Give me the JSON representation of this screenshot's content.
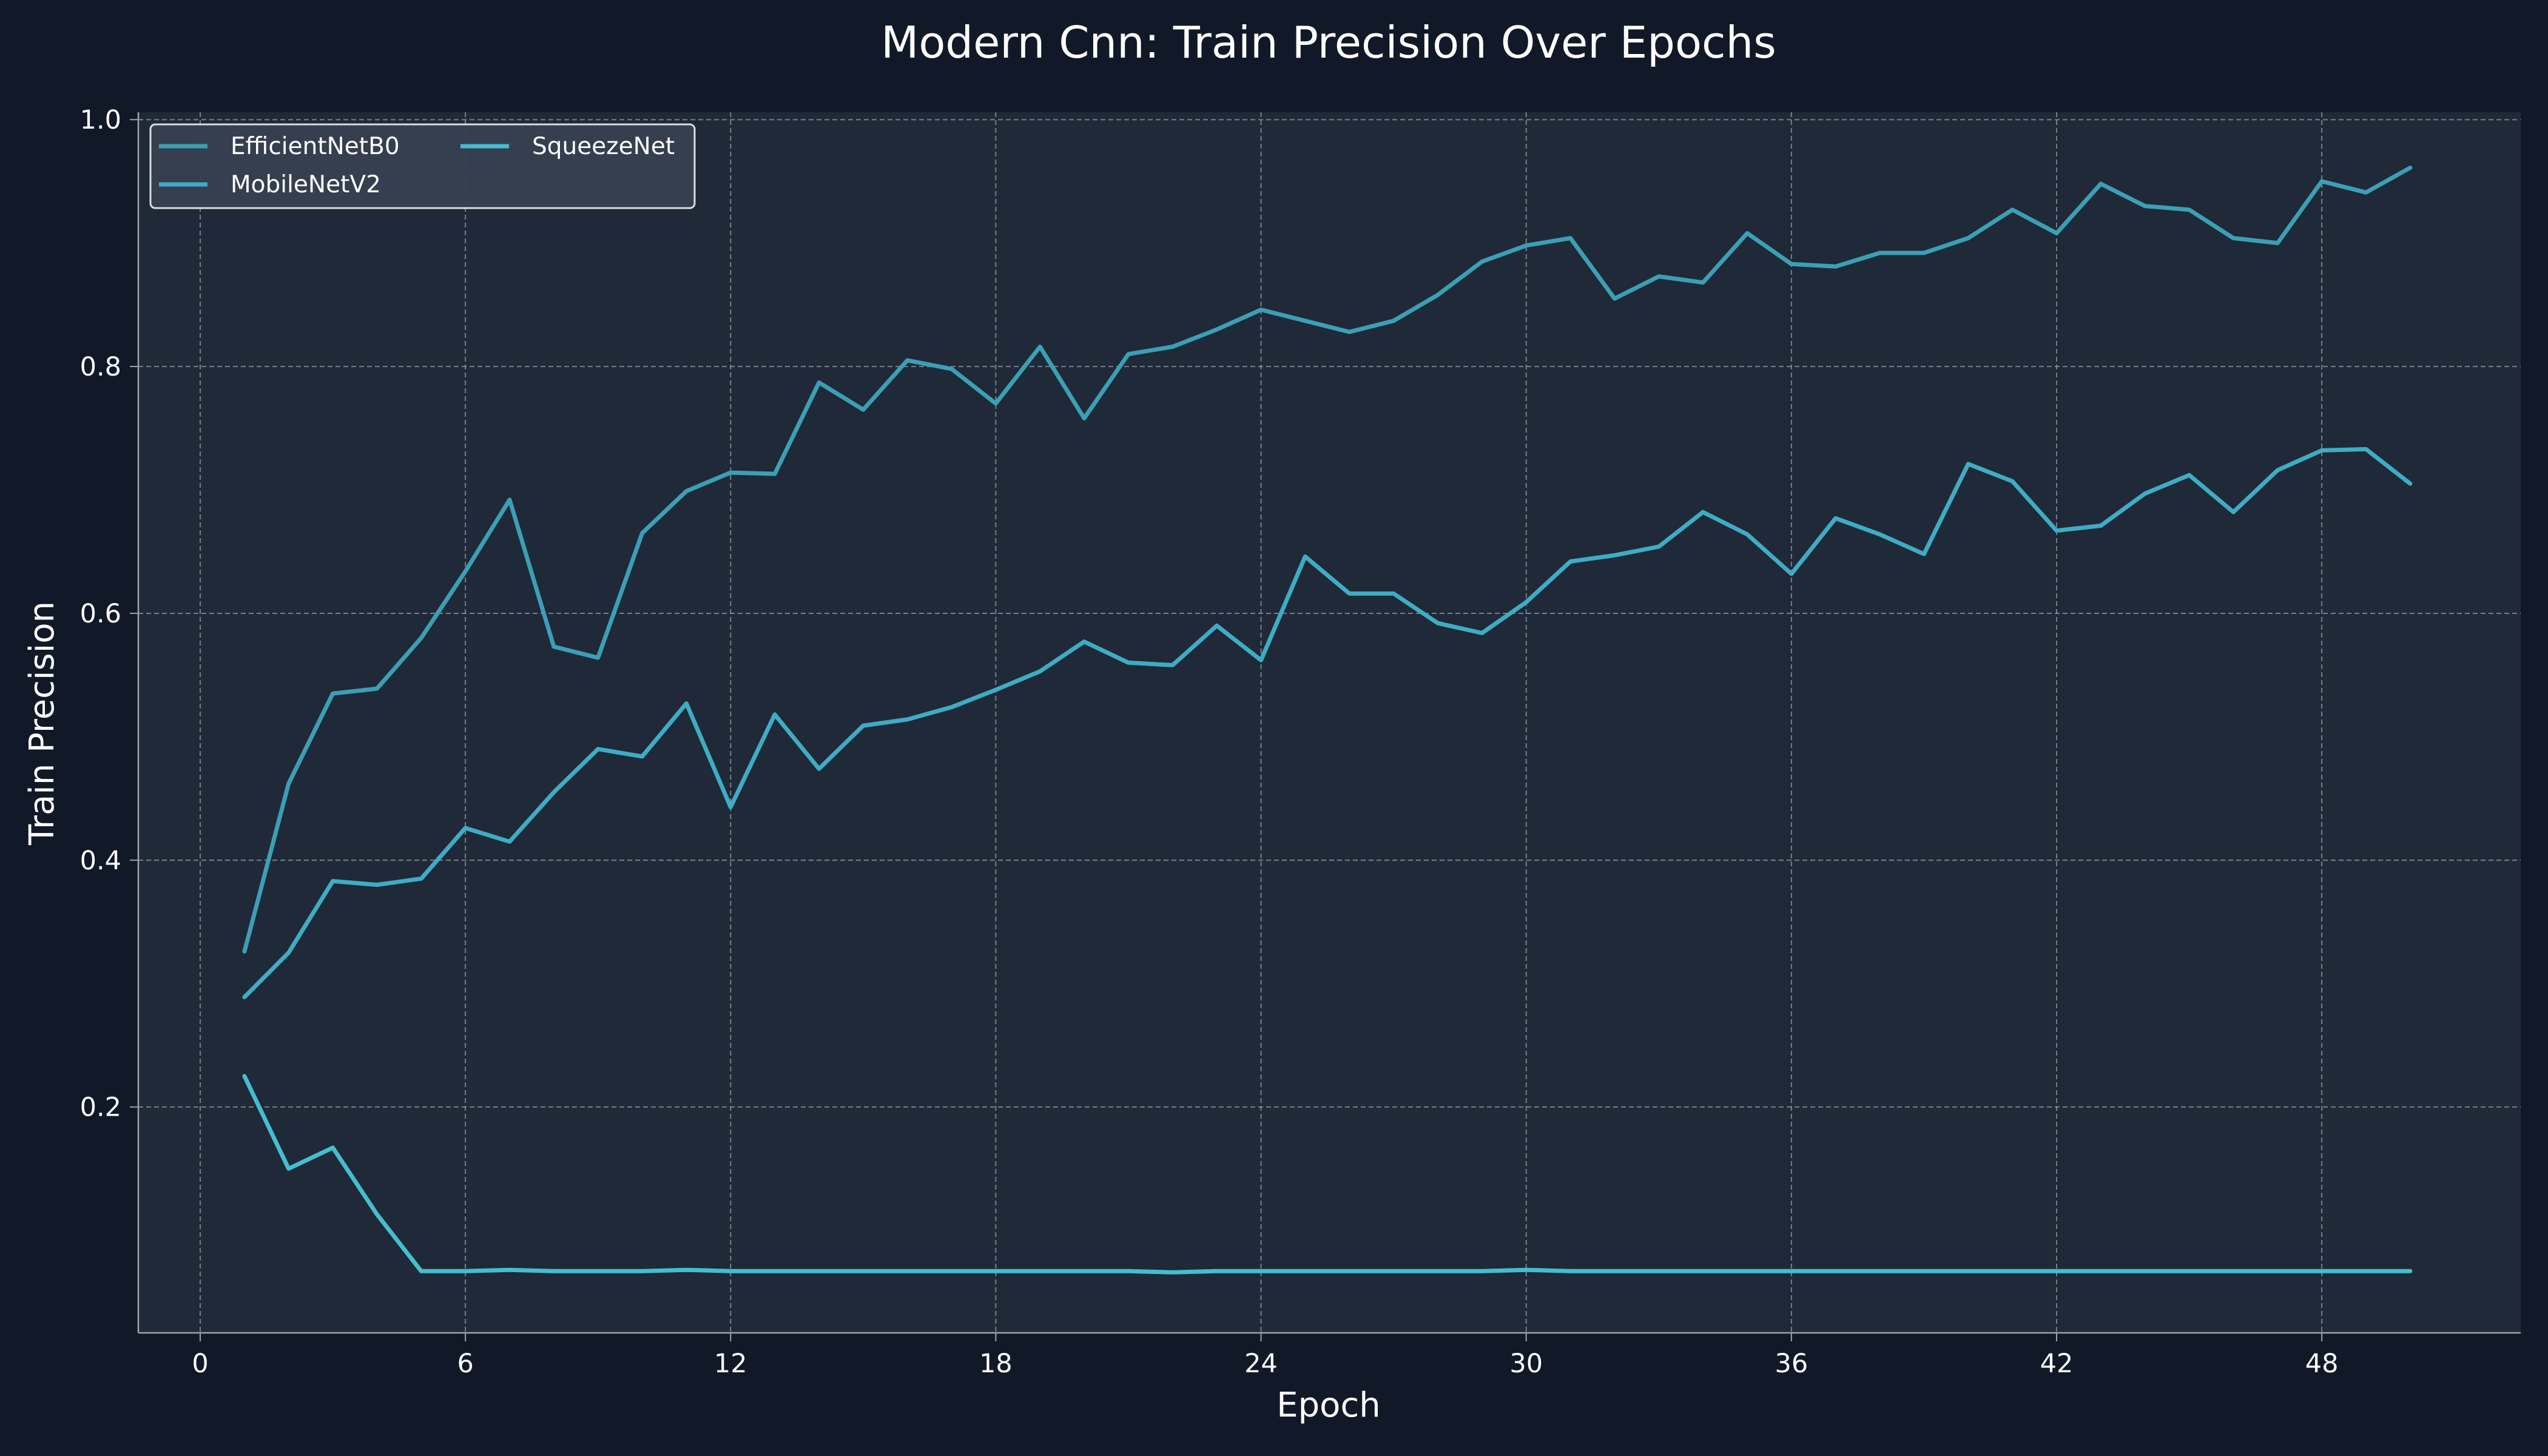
{
  "colors": {
    "background": "#111827",
    "plot_background": "#1f2937",
    "grid": "#9ca3af",
    "axis": "#9ca3af",
    "text": "#ffffff",
    "legend_background": "#374151",
    "legend_border": "#e5e7eb"
  },
  "chart_data": {
    "type": "line",
    "title": "Modern Cnn: Train Precision Over Epochs",
    "xlabel": "Epoch",
    "ylabel": "Train Precision",
    "xlim": [
      -1.4,
      52.5
    ],
    "ylim": [
      0.017,
      1.006
    ],
    "xticks": [
      0,
      6,
      12,
      18,
      24,
      30,
      36,
      42,
      48
    ],
    "yticks": [
      0.2,
      0.4,
      0.6,
      0.8,
      1.0
    ],
    "ytick_labels": [
      "0.2",
      "0.4",
      "0.6",
      "0.8",
      "1.0"
    ],
    "grid": true,
    "legend_position": "top-left",
    "legend_columns": 2,
    "x": [
      1,
      2,
      3,
      4,
      5,
      6,
      7,
      8,
      9,
      10,
      11,
      12,
      13,
      14,
      15,
      16,
      17,
      18,
      19,
      20,
      21,
      22,
      23,
      24,
      25,
      26,
      27,
      28,
      29,
      30,
      31,
      32,
      33,
      34,
      35,
      36,
      37,
      38,
      39,
      40,
      41,
      42,
      43,
      44,
      45,
      46,
      47,
      48,
      49,
      50
    ],
    "series": [
      {
        "name": "EfficientNetB0",
        "color": "#3b9fb5",
        "values": [
          0.326,
          0.462,
          0.535,
          0.539,
          0.58,
          0.634,
          0.692,
          0.573,
          0.564,
          0.665,
          0.699,
          0.714,
          0.713,
          0.787,
          0.765,
          0.805,
          0.798,
          0.77,
          0.816,
          0.758,
          0.81,
          0.816,
          0.83,
          0.846,
          0.837,
          0.828,
          0.837,
          0.858,
          0.885,
          0.898,
          0.904,
          0.855,
          0.873,
          0.868,
          0.908,
          0.883,
          0.881,
          0.892,
          0.892,
          0.904,
          0.927,
          0.908,
          0.948,
          0.93,
          0.927,
          0.904,
          0.9,
          0.95,
          0.941,
          0.961
        ]
      },
      {
        "name": "MobileNetV2",
        "color": "#3eacc4",
        "values": [
          0.289,
          0.325,
          0.383,
          0.38,
          0.385,
          0.426,
          0.415,
          0.455,
          0.49,
          0.484,
          0.527,
          0.443,
          0.518,
          0.474,
          0.509,
          0.514,
          0.524,
          0.538,
          0.553,
          0.577,
          0.56,
          0.558,
          0.59,
          0.562,
          0.646,
          0.616,
          0.616,
          0.592,
          0.584,
          0.609,
          0.642,
          0.647,
          0.654,
          0.682,
          0.664,
          0.632,
          0.677,
          0.664,
          0.648,
          0.721,
          0.707,
          0.667,
          0.671,
          0.697,
          0.712,
          0.682,
          0.716,
          0.732,
          0.733,
          0.705
        ]
      },
      {
        "name": "SqueezeNet",
        "color": "#45bdd0",
        "values": [
          0.225,
          0.15,
          0.167,
          0.113,
          0.067,
          0.067,
          0.068,
          0.067,
          0.067,
          0.067,
          0.068,
          0.067,
          0.067,
          0.067,
          0.067,
          0.067,
          0.067,
          0.067,
          0.067,
          0.067,
          0.067,
          0.066,
          0.067,
          0.067,
          0.067,
          0.067,
          0.067,
          0.067,
          0.067,
          0.068,
          0.067,
          0.067,
          0.067,
          0.067,
          0.067,
          0.067,
          0.067,
          0.067,
          0.067,
          0.067,
          0.067,
          0.067,
          0.067,
          0.067,
          0.067,
          0.067,
          0.067,
          0.067,
          0.067,
          0.067
        ]
      }
    ]
  }
}
